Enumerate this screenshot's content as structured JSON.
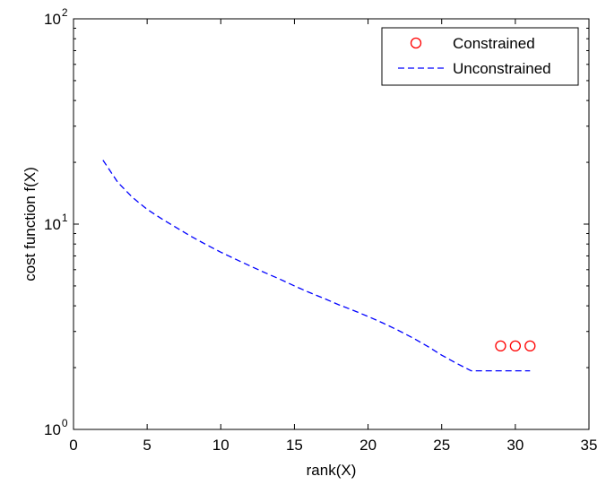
{
  "chart_data": {
    "type": "line",
    "title": "",
    "xlabel": "rank(X)",
    "ylabel": "cost function f(X)",
    "xlim": [
      0,
      35
    ],
    "ylim": [
      1,
      100
    ],
    "yscale": "log",
    "grid": false,
    "legend_position": "top-right",
    "x_ticks": [
      {
        "value": 0,
        "label": "0"
      },
      {
        "value": 5,
        "label": "5"
      },
      {
        "value": 10,
        "label": "10"
      },
      {
        "value": 15,
        "label": "15"
      },
      {
        "value": 20,
        "label": "20"
      },
      {
        "value": 25,
        "label": "25"
      },
      {
        "value": 30,
        "label": "30"
      },
      {
        "value": 35,
        "label": "35"
      }
    ],
    "y_ticks": [
      {
        "value": 1,
        "base": "10",
        "exp": "0"
      },
      {
        "value": 10,
        "base": "10",
        "exp": "1"
      },
      {
        "value": 100,
        "base": "10",
        "exp": "2"
      }
    ],
    "series": [
      {
        "name": "Constrained",
        "style": "markers",
        "marker": "circle",
        "color": "#ff0000",
        "x": [
          29,
          30,
          31
        ],
        "y": [
          2.55,
          2.55,
          2.55
        ]
      },
      {
        "name": "Unconstrained",
        "style": "dashed",
        "color": "#0000ff",
        "x": [
          2,
          3,
          4,
          5,
          6,
          7,
          8,
          9,
          10,
          11,
          12,
          13,
          14,
          15,
          16,
          17,
          18,
          19,
          20,
          21,
          22,
          23,
          24,
          25,
          26,
          27,
          28,
          29,
          30,
          31
        ],
        "y": [
          20.5,
          16.0,
          13.5,
          11.8,
          10.6,
          9.6,
          8.7,
          7.95,
          7.3,
          6.75,
          6.25,
          5.8,
          5.4,
          5.0,
          4.65,
          4.35,
          4.05,
          3.8,
          3.55,
          3.3,
          3.05,
          2.8,
          2.55,
          2.3,
          2.1,
          1.93,
          1.93,
          1.93,
          1.93,
          1.93
        ]
      }
    ]
  }
}
